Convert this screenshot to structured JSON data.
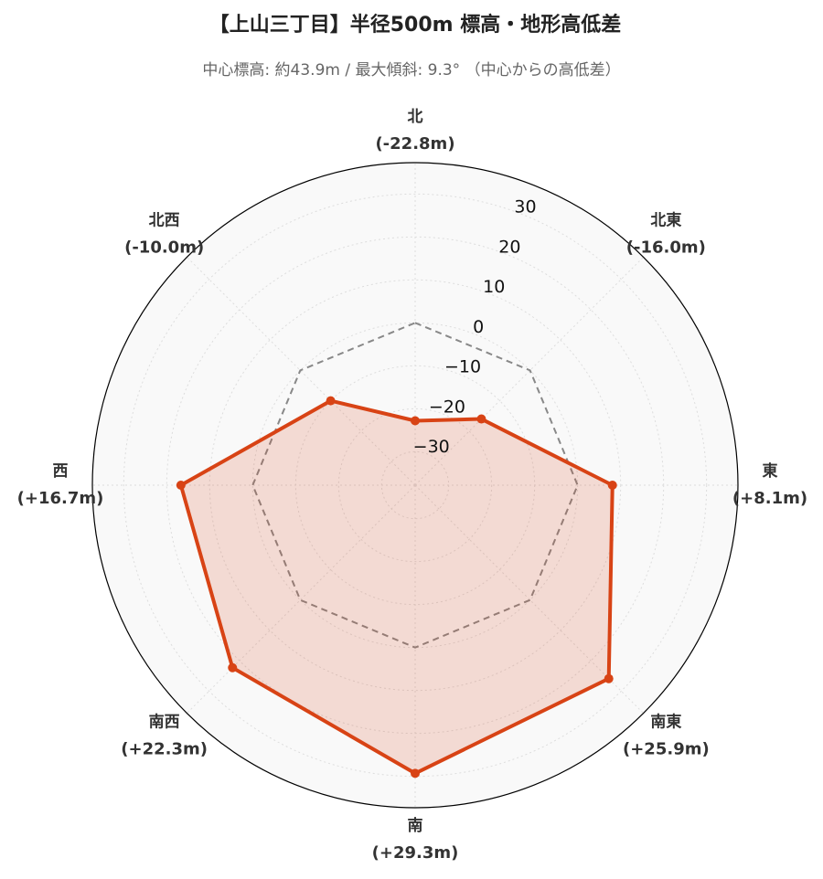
{
  "chart_data": {
    "type": "radar",
    "title": "【上山三丁目】半径500m 標高・地形高低差",
    "subtitle": "中心標高: 約43.9m / 最大傾斜: 9.3° （中心からの高低差）",
    "categories": [
      "北",
      "北東",
      "東",
      "南東",
      "南",
      "南西",
      "西",
      "北西"
    ],
    "values": [
      -22.8,
      -16.0,
      8.1,
      25.9,
      29.3,
      22.3,
      16.7,
      -10.0
    ],
    "value_labels": [
      "(-22.8m)",
      "(-16.0m)",
      "(+8.1m)",
      "(+25.9m)",
      "(+29.3m)",
      "(+22.3m)",
      "(+16.7m)",
      "(-10.0m)"
    ],
    "color": "#d84315",
    "baseline": 0,
    "rlim": [
      -37.8,
      37.3
    ],
    "rticks": [
      {
        "value": -30,
        "label": "−30"
      },
      {
        "value": -20,
        "label": "−20"
      },
      {
        "value": -10,
        "label": "−10"
      },
      0,
      10,
      20,
      30
    ],
    "grid": true
  }
}
